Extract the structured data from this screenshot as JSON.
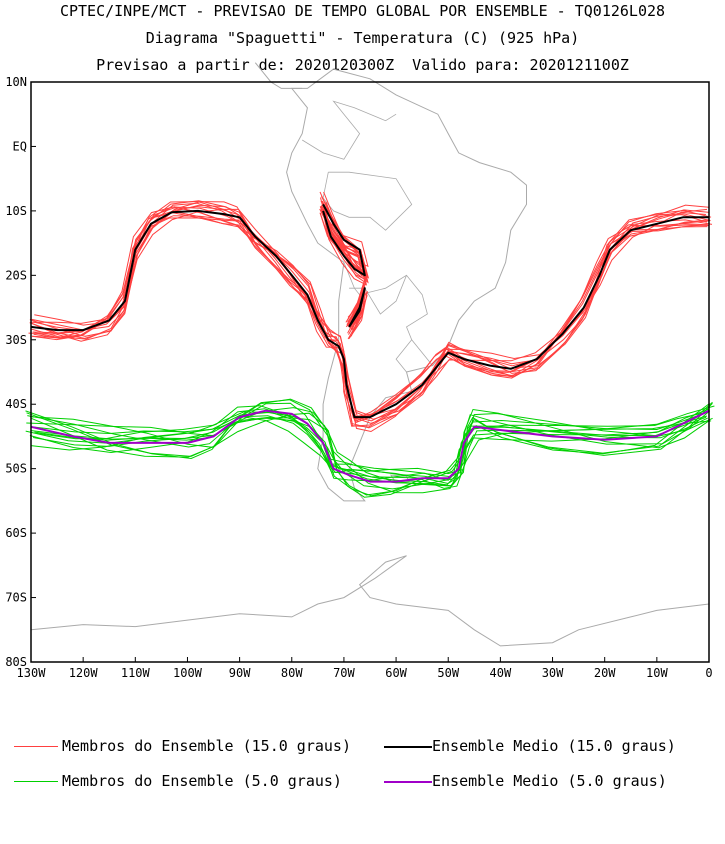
{
  "titles": {
    "line1": "CPTEC/INPE/MCT - PREVISAO DE TEMPO GLOBAL POR ENSEMBLE - TQ0126L028",
    "line2": "Diagrama \"Spaguetti\" - Temperatura (C) (925 hPa)",
    "line3": "Previsao a partir de: 2020120300Z  Valido para: 2020121100Z"
  },
  "legend": [
    {
      "label": "Membros do Ensemble (15.0 graus)",
      "color": "#ff4040"
    },
    {
      "label": "Ensemble Medio (15.0 graus)",
      "color": "#000000"
    },
    {
      "label": "Membros do Ensemble (5.0 graus)",
      "color": "#00d000"
    },
    {
      "label": "Ensemble Medio (5.0 graus)",
      "color": "#a000c8"
    }
  ],
  "colors": {
    "map_outline": "#aaaaaa",
    "frame": "#000000"
  },
  "chart_data": {
    "type": "line",
    "xlim": [
      -130,
      0
    ],
    "ylim": [
      -80,
      10
    ],
    "x_ticks": [
      {
        "v": -130,
        "label": "130W"
      },
      {
        "v": -120,
        "label": "120W"
      },
      {
        "v": -110,
        "label": "110W"
      },
      {
        "v": -100,
        "label": "100W"
      },
      {
        "v": -90,
        "label": "90W"
      },
      {
        "v": -80,
        "label": "80W"
      },
      {
        "v": -70,
        "label": "70W"
      },
      {
        "v": -60,
        "label": "60W"
      },
      {
        "v": -50,
        "label": "50W"
      },
      {
        "v": -40,
        "label": "40W"
      },
      {
        "v": -30,
        "label": "30W"
      },
      {
        "v": -20,
        "label": "20W"
      },
      {
        "v": -10,
        "label": "10W"
      },
      {
        "v": 0,
        "label": "0"
      }
    ],
    "y_ticks": [
      {
        "v": 10,
        "label": "10N"
      },
      {
        "v": 0,
        "label": "EQ"
      },
      {
        "v": -10,
        "label": "10S"
      },
      {
        "v": -20,
        "label": "20S"
      },
      {
        "v": -30,
        "label": "30S"
      },
      {
        "v": -40,
        "label": "40S"
      },
      {
        "v": -50,
        "label": "50S"
      },
      {
        "v": -60,
        "label": "60S"
      },
      {
        "v": -70,
        "label": "70S"
      },
      {
        "v": -80,
        "label": "80S"
      }
    ],
    "series": [
      {
        "name": "Ensemble Medio (15.0 graus)",
        "color": "#000000",
        "segments": [
          [
            [
              -130,
              -28
            ],
            [
              -125,
              -28.5
            ],
            [
              -120,
              -28.5
            ],
            [
              -115,
              -27
            ],
            [
              -112,
              -24
            ],
            [
              -110,
              -16
            ],
            [
              -107,
              -12
            ],
            [
              -103,
              -10.2
            ],
            [
              -98,
              -10
            ],
            [
              -93,
              -10.5
            ],
            [
              -90,
              -11
            ],
            [
              -87,
              -14
            ],
            [
              -83,
              -17
            ],
            [
              -80,
              -20
            ],
            [
              -77,
              -23
            ],
            [
              -75,
              -27
            ],
            [
              -73,
              -30
            ],
            [
              -71,
              -31
            ],
            [
              -70,
              -33
            ],
            [
              -69.5,
              -37
            ],
            [
              -68,
              -42
            ],
            [
              -65,
              -42
            ],
            [
              -60,
              -40
            ],
            [
              -55,
              -37
            ],
            [
              -52,
              -34
            ],
            [
              -50,
              -32
            ],
            [
              -47,
              -33
            ],
            [
              -42,
              -34
            ],
            [
              -38,
              -34.5
            ],
            [
              -33,
              -33
            ],
            [
              -28,
              -29
            ],
            [
              -24,
              -25
            ],
            [
              -21,
              -20
            ],
            [
              -19,
              -16
            ],
            [
              -15,
              -13
            ],
            [
              -10,
              -12
            ],
            [
              -5,
              -11
            ],
            [
              0,
              -11
            ]
          ],
          [
            [
              -74,
              -9
            ],
            [
              -72,
              -12
            ],
            [
              -70,
              -14.5
            ],
            [
              -67,
              -16
            ],
            [
              -66,
              -20
            ],
            [
              -68,
              -19
            ],
            [
              -70,
              -17
            ],
            [
              -72.5,
              -14
            ],
            [
              -74,
              -10
            ]
          ],
          [
            [
              -69,
              -28
            ],
            [
              -67,
              -25
            ],
            [
              -66,
              -22
            ],
            [
              -67,
              -25.5
            ],
            [
              -69,
              -28
            ]
          ]
        ]
      },
      {
        "name": "Ensemble Medio (5.0 graus)",
        "color": "#a000c8",
        "segments": [
          [
            [
              -130,
              -43.5
            ],
            [
              -122,
              -45
            ],
            [
              -115,
              -46
            ],
            [
              -108,
              -46
            ],
            [
              -100,
              -46
            ],
            [
              -95,
              -45
            ],
            [
              -90,
              -42
            ],
            [
              -85,
              -41
            ],
            [
              -80,
              -41.5
            ],
            [
              -77,
              -43
            ],
            [
              -74,
              -46
            ],
            [
              -72,
              -50
            ],
            [
              -69,
              -51
            ],
            [
              -65,
              -52
            ],
            [
              -60,
              -52
            ],
            [
              -55,
              -51.5
            ],
            [
              -50,
              -51.5
            ],
            [
              -48,
              -50
            ],
            [
              -47,
              -46
            ],
            [
              -45,
              -43.5
            ],
            [
              -40,
              -44
            ],
            [
              -30,
              -45
            ],
            [
              -20,
              -45.5
            ],
            [
              -10,
              -45
            ],
            [
              -5,
              -43
            ],
            [
              0,
              -41
            ]
          ]
        ]
      }
    ]
  }
}
